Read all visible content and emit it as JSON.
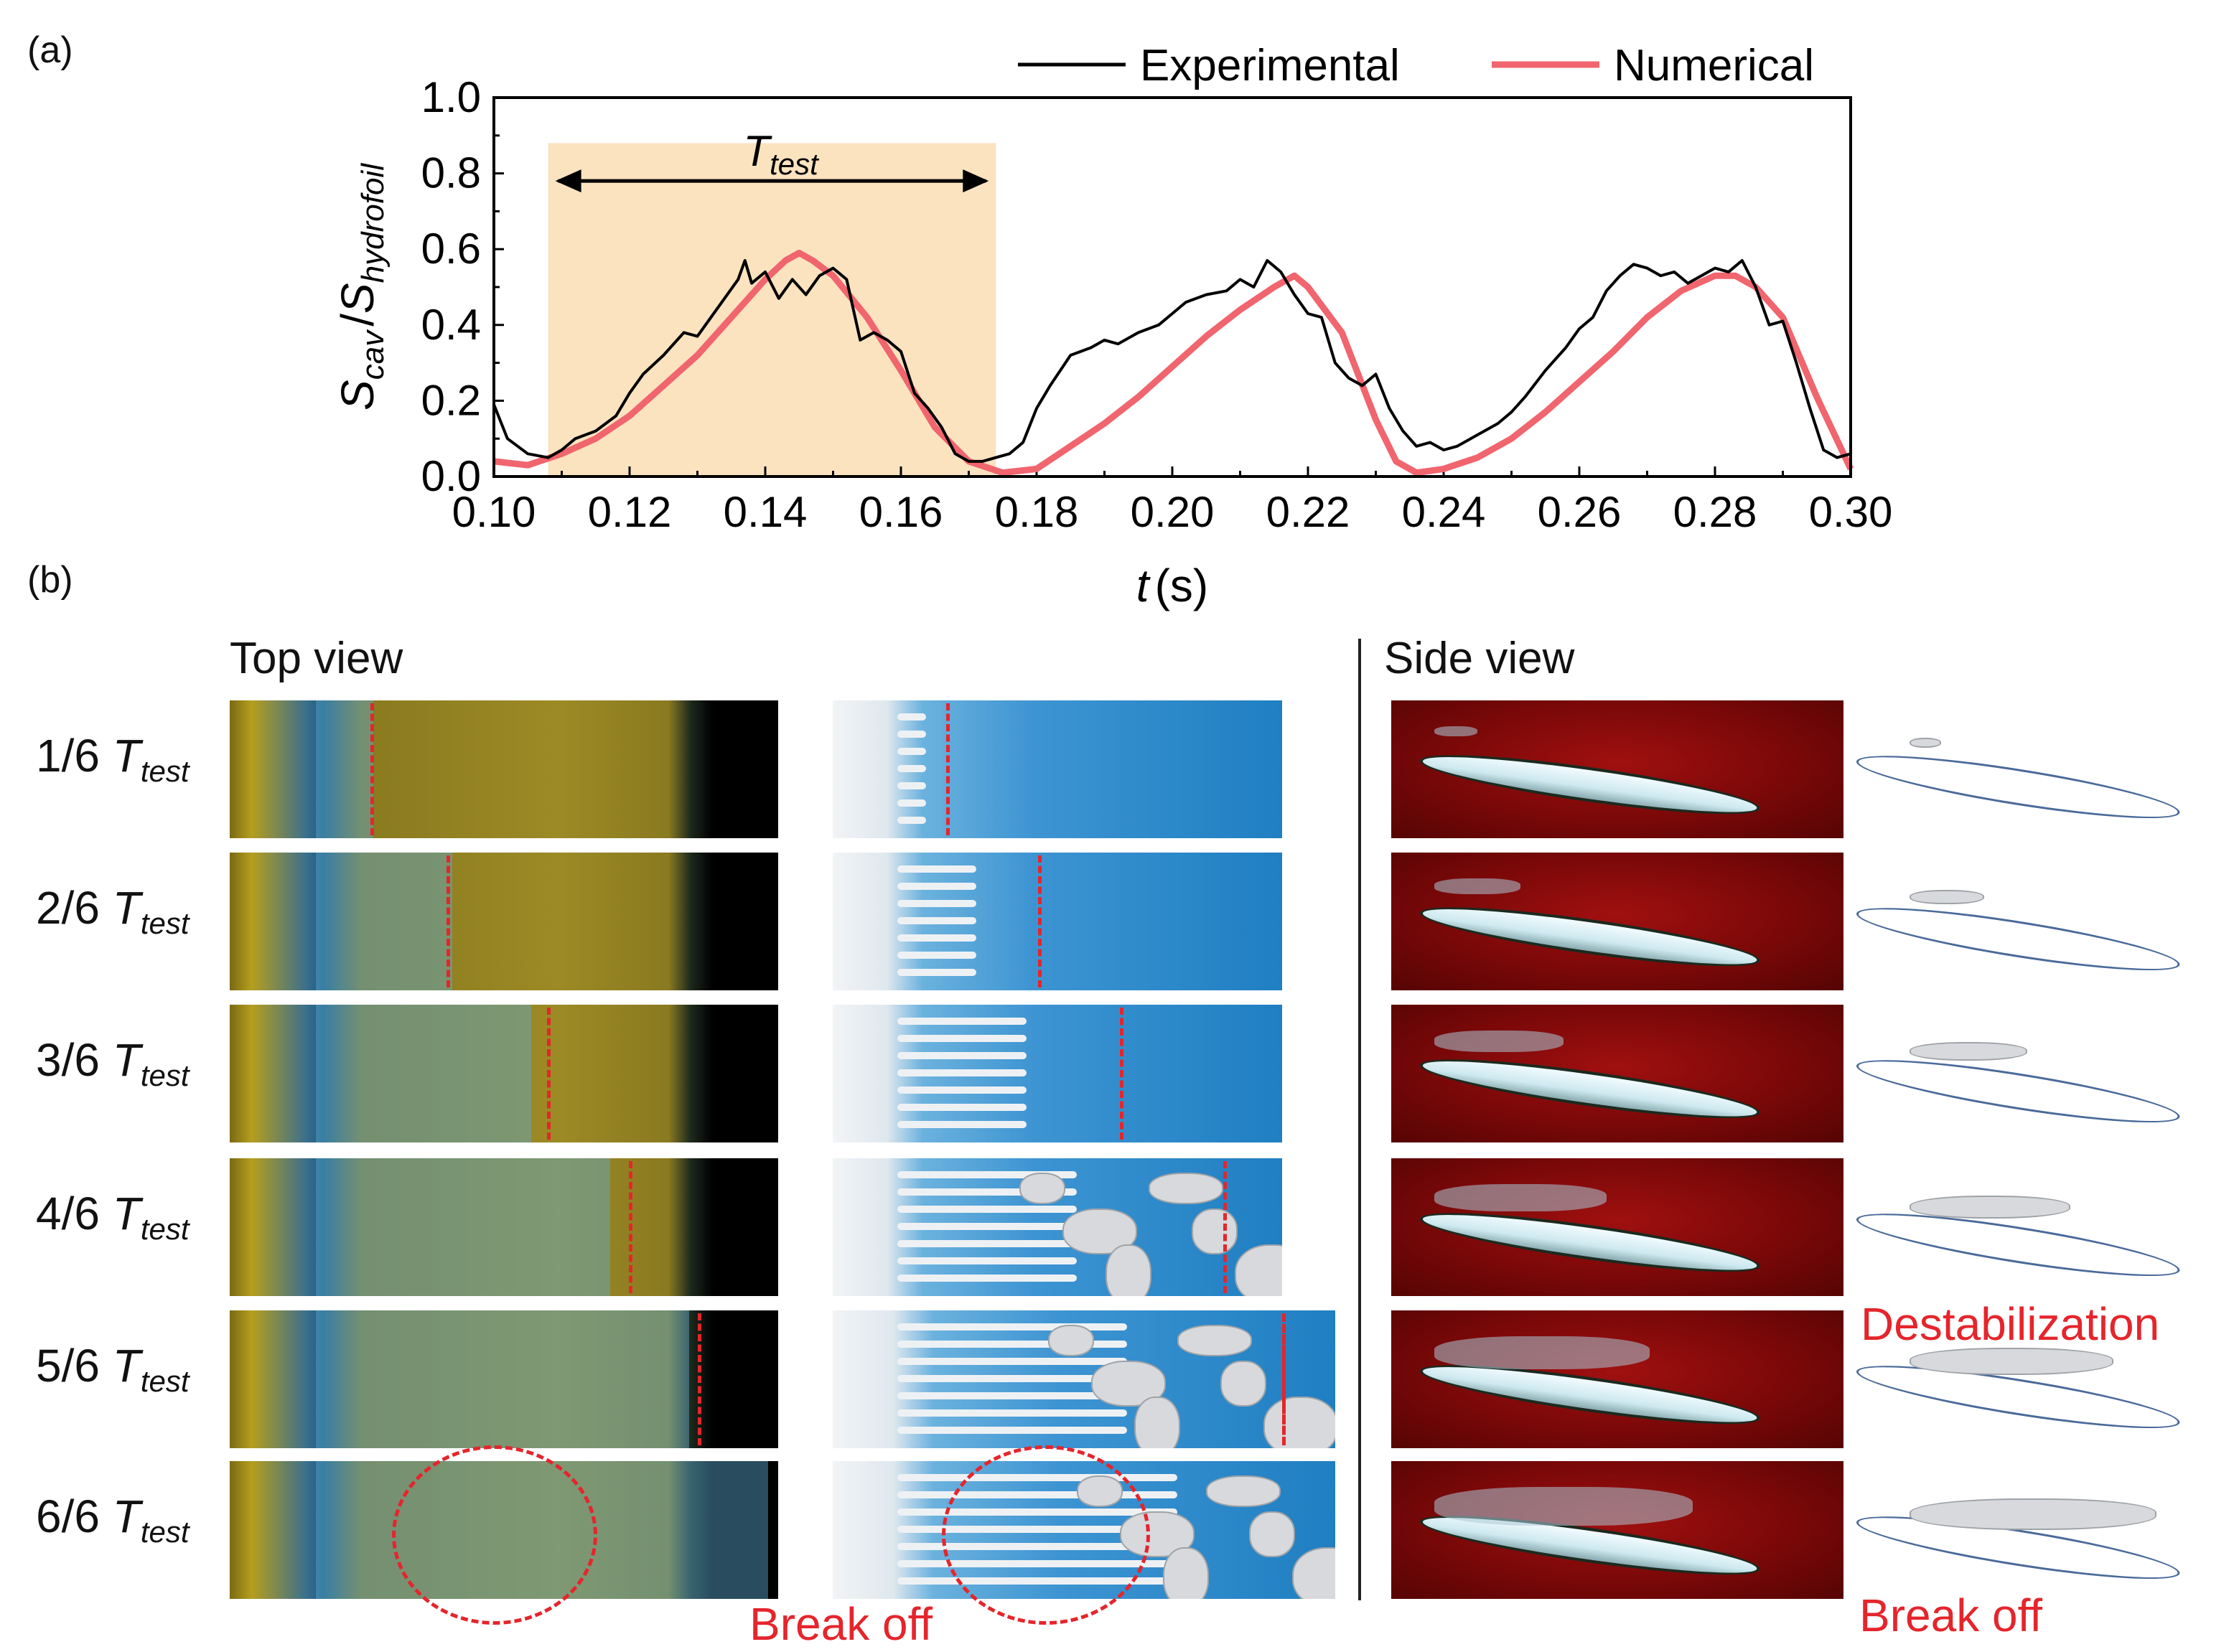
{
  "panel_a_label": "(a)",
  "panel_b_label": "(b)",
  "chart_data": {
    "type": "line",
    "title": "",
    "xlabel": "t (s)",
    "xlabel_var": "t",
    "xlabel_unit": "(s)",
    "ylabel": "S_cav / S_hydrofoil",
    "ylabel_parts": {
      "s1": "S",
      "sub1": "cav",
      "slash": "/",
      "s2": "S",
      "sub2": "hydrofoil"
    },
    "xlim": [
      0.1,
      0.3
    ],
    "ylim": [
      0.0,
      1.0
    ],
    "xticks": [
      "0.10",
      "0.12",
      "0.14",
      "0.16",
      "0.18",
      "0.20",
      "0.22",
      "0.24",
      "0.26",
      "0.28",
      "0.30"
    ],
    "yticks": [
      "0.0",
      "0.2",
      "0.4",
      "0.6",
      "0.8",
      "1.0"
    ],
    "legend_position": "top-right",
    "annotation": {
      "label_main": "T",
      "label_sub": "test",
      "x_start": 0.108,
      "x_end": 0.174,
      "color": "#fbe3c0"
    },
    "series": [
      {
        "name": "Experimental",
        "color": "#000000",
        "x": [
          0.1,
          0.102,
          0.105,
          0.108,
          0.11,
          0.112,
          0.115,
          0.118,
          0.12,
          0.122,
          0.125,
          0.128,
          0.13,
          0.132,
          0.134,
          0.136,
          0.137,
          0.138,
          0.14,
          0.142,
          0.144,
          0.146,
          0.148,
          0.15,
          0.152,
          0.154,
          0.156,
          0.158,
          0.16,
          0.162,
          0.164,
          0.166,
          0.168,
          0.17,
          0.172,
          0.174,
          0.176,
          0.178,
          0.18,
          0.182,
          0.185,
          0.188,
          0.19,
          0.192,
          0.195,
          0.198,
          0.2,
          0.202,
          0.205,
          0.208,
          0.21,
          0.212,
          0.214,
          0.216,
          0.218,
          0.22,
          0.222,
          0.224,
          0.226,
          0.228,
          0.23,
          0.232,
          0.234,
          0.236,
          0.238,
          0.24,
          0.242,
          0.245,
          0.248,
          0.25,
          0.252,
          0.255,
          0.258,
          0.26,
          0.262,
          0.264,
          0.266,
          0.268,
          0.27,
          0.272,
          0.274,
          0.276,
          0.278,
          0.28,
          0.282,
          0.284,
          0.286,
          0.288,
          0.29,
          0.292,
          0.294,
          0.296,
          0.298,
          0.3
        ],
        "y": [
          0.19,
          0.1,
          0.06,
          0.05,
          0.07,
          0.1,
          0.12,
          0.16,
          0.22,
          0.27,
          0.32,
          0.38,
          0.37,
          0.42,
          0.47,
          0.52,
          0.57,
          0.51,
          0.54,
          0.47,
          0.52,
          0.48,
          0.53,
          0.55,
          0.52,
          0.36,
          0.38,
          0.36,
          0.33,
          0.22,
          0.18,
          0.13,
          0.06,
          0.04,
          0.04,
          0.05,
          0.06,
          0.09,
          0.18,
          0.24,
          0.32,
          0.34,
          0.36,
          0.35,
          0.38,
          0.4,
          0.43,
          0.46,
          0.48,
          0.49,
          0.52,
          0.5,
          0.57,
          0.54,
          0.48,
          0.43,
          0.42,
          0.3,
          0.26,
          0.24,
          0.27,
          0.18,
          0.12,
          0.08,
          0.09,
          0.07,
          0.08,
          0.11,
          0.14,
          0.17,
          0.21,
          0.28,
          0.34,
          0.39,
          0.42,
          0.49,
          0.53,
          0.56,
          0.55,
          0.53,
          0.54,
          0.51,
          0.53,
          0.55,
          0.54,
          0.57,
          0.5,
          0.4,
          0.41,
          0.3,
          0.18,
          0.07,
          0.05,
          0.06
        ]
      },
      {
        "name": "Numerical",
        "color": "#f0656e",
        "x": [
          0.1,
          0.105,
          0.11,
          0.115,
          0.12,
          0.125,
          0.13,
          0.135,
          0.14,
          0.143,
          0.145,
          0.147,
          0.15,
          0.155,
          0.16,
          0.165,
          0.17,
          0.175,
          0.18,
          0.185,
          0.19,
          0.195,
          0.2,
          0.205,
          0.21,
          0.215,
          0.218,
          0.22,
          0.225,
          0.23,
          0.233,
          0.236,
          0.24,
          0.245,
          0.25,
          0.255,
          0.26,
          0.265,
          0.27,
          0.275,
          0.28,
          0.283,
          0.286,
          0.29,
          0.295,
          0.3
        ],
        "y": [
          0.04,
          0.03,
          0.06,
          0.1,
          0.16,
          0.24,
          0.32,
          0.42,
          0.52,
          0.57,
          0.59,
          0.57,
          0.53,
          0.42,
          0.28,
          0.13,
          0.04,
          0.01,
          0.02,
          0.08,
          0.14,
          0.21,
          0.29,
          0.37,
          0.44,
          0.5,
          0.53,
          0.5,
          0.38,
          0.15,
          0.04,
          0.01,
          0.02,
          0.05,
          0.1,
          0.17,
          0.25,
          0.33,
          0.42,
          0.49,
          0.53,
          0.53,
          0.5,
          0.42,
          0.21,
          0.02
        ]
      }
    ]
  },
  "top_view_heading": "Top view",
  "side_view_heading": "Side view",
  "rows": [
    {
      "num": "1/6",
      "var": "T",
      "sub": "test"
    },
    {
      "num": "2/6",
      "var": "T",
      "sub": "test"
    },
    {
      "num": "3/6",
      "var": "T",
      "sub": "test"
    },
    {
      "num": "4/6",
      "var": "T",
      "sub": "test"
    },
    {
      "num": "5/6",
      "var": "T",
      "sub": "test"
    },
    {
      "num": "6/6",
      "var": "T",
      "sub": "test"
    }
  ],
  "annotations": {
    "break_off_top": "Break off",
    "destabilization": "Destabilization",
    "break_off_side": "Break off"
  }
}
